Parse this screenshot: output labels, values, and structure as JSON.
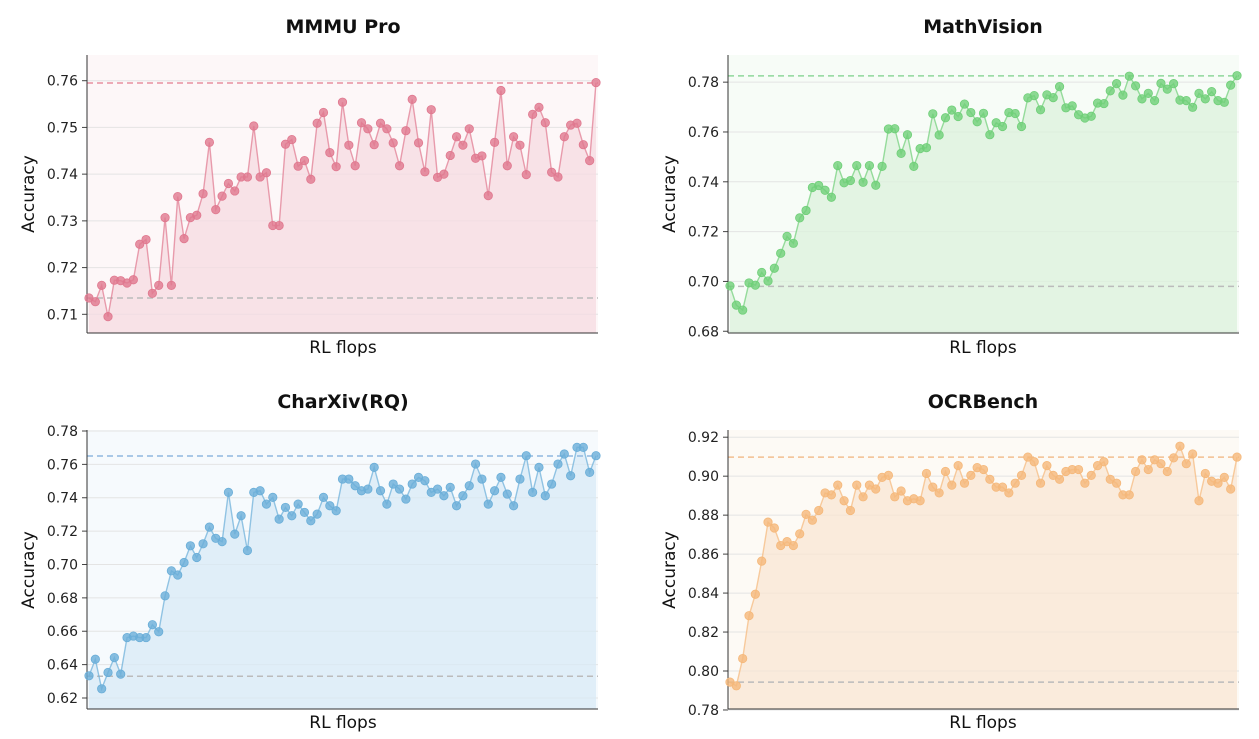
{
  "chart_data": [
    {
      "type": "line",
      "title": "MMMU Pro",
      "xlabel": "RL flops",
      "ylabel": "Accuracy",
      "ylim": [
        0.706,
        0.7655
      ],
      "yticks": [
        0.71,
        0.72,
        0.73,
        0.74,
        0.75,
        0.76
      ],
      "tick_labels": [
        "0.71",
        "0.72",
        "0.73",
        "0.74",
        "0.75",
        "0.76"
      ],
      "color": "#e0788f",
      "fill_color": "#f6dbe1",
      "reference_lines": [
        {
          "value": 0.7595,
          "color": "#e8909f"
        },
        {
          "value": 0.7135,
          "color": "#bbbbbb"
        }
      ],
      "series": [
        {
          "values": [
            0.7135,
            0.7127,
            0.7162,
            0.7095,
            0.7173,
            0.7172,
            0.7167,
            0.7174,
            0.725,
            0.726,
            0.7145,
            0.7162,
            0.7307,
            0.7162,
            0.7352,
            0.7262,
            0.7307,
            0.7312,
            0.7358,
            0.7468,
            0.7324,
            0.7353,
            0.738,
            0.7364,
            0.7394,
            0.7394,
            0.7503,
            0.7394,
            0.7403,
            0.729,
            0.729,
            0.7464,
            0.7474,
            0.7417,
            0.7429,
            0.7389,
            0.7509,
            0.7532,
            0.7446,
            0.7416,
            0.7554,
            0.7462,
            0.7418,
            0.751,
            0.7497,
            0.7463,
            0.7509,
            0.7497,
            0.7467,
            0.7418,
            0.7493,
            0.756,
            0.7467,
            0.7405,
            0.7538,
            0.7393,
            0.74,
            0.744,
            0.748,
            0.7462,
            0.7497,
            0.7434,
            0.7439,
            0.7354,
            0.7468,
            0.7579,
            0.7418,
            0.748,
            0.7462,
            0.7399,
            0.7528,
            0.7543,
            0.751,
            0.7404,
            0.7394,
            0.748,
            0.7505,
            0.7509,
            0.7463,
            0.7429,
            0.7596
          ]
        }
      ]
    },
    {
      "type": "line",
      "title": "MathVision",
      "xlabel": "RL flops",
      "ylabel": "Accuracy",
      "ylim": [
        0.6793,
        0.7909
      ],
      "yticks": [
        0.68,
        0.7,
        0.72,
        0.74,
        0.76,
        0.78
      ],
      "tick_labels": [
        "0.68",
        "0.70",
        "0.72",
        "0.74",
        "0.76",
        "0.78"
      ],
      "color": "#6fcf78",
      "fill_color": "#dcf2dc",
      "reference_lines": [
        {
          "value": 0.7825,
          "color": "#8ed79a"
        },
        {
          "value": 0.698,
          "color": "#bbbbbb"
        }
      ],
      "series": [
        {
          "values": [
            0.6982,
            0.6905,
            0.6885,
            0.6994,
            0.6985,
            0.7036,
            0.7002,
            0.7053,
            0.7113,
            0.7181,
            0.7153,
            0.7255,
            0.7285,
            0.7377,
            0.7385,
            0.7366,
            0.7338,
            0.7465,
            0.7396,
            0.7405,
            0.7465,
            0.7398,
            0.7465,
            0.7386,
            0.7462,
            0.7612,
            0.7613,
            0.7514,
            0.7589,
            0.7462,
            0.7533,
            0.7537,
            0.7673,
            0.7588,
            0.7657,
            0.7688,
            0.7662,
            0.7712,
            0.7678,
            0.7641,
            0.7675,
            0.7589,
            0.7637,
            0.7622,
            0.7678,
            0.7674,
            0.7622,
            0.7737,
            0.7746,
            0.7689,
            0.7749,
            0.7738,
            0.7782,
            0.7697,
            0.7705,
            0.7669,
            0.7656,
            0.7663,
            0.7716,
            0.7714,
            0.7765,
            0.7794,
            0.7748,
            0.7824,
            0.7785,
            0.7733,
            0.7755,
            0.7726,
            0.7795,
            0.7772,
            0.7794,
            0.7728,
            0.7726,
            0.7699,
            0.7755,
            0.7733,
            0.7762,
            0.7726,
            0.7719,
            0.7788,
            0.7826
          ]
        }
      ]
    },
    {
      "type": "line",
      "title": "CharXiv(RQ)",
      "xlabel": "RL flops",
      "ylabel": "Accuracy",
      "ylim": [
        0.6134,
        0.7806
      ],
      "yticks": [
        0.62,
        0.64,
        0.66,
        0.68,
        0.7,
        0.72,
        0.74,
        0.76,
        0.78
      ],
      "tick_labels": [
        "0.62",
        "0.64",
        "0.66",
        "0.68",
        "0.70",
        "0.72",
        "0.74",
        "0.76",
        "0.78"
      ],
      "color": "#6aaed8",
      "fill_color": "#d8e9f6",
      "reference_lines": [
        {
          "value": 0.765,
          "color": "#8fb8e0"
        },
        {
          "value": 0.633,
          "color": "#bbbbbb"
        }
      ],
      "series": [
        {
          "values": [
            0.6333,
            0.6432,
            0.6255,
            0.6353,
            0.6442,
            0.6343,
            0.6562,
            0.6571,
            0.6562,
            0.6562,
            0.6639,
            0.6597,
            0.6812,
            0.6962,
            0.6937,
            0.7012,
            0.7112,
            0.7042,
            0.7124,
            0.7224,
            0.7157,
            0.7137,
            0.7432,
            0.7182,
            0.7292,
            0.7084,
            0.7432,
            0.7442,
            0.7362,
            0.7402,
            0.7272,
            0.7342,
            0.7292,
            0.7362,
            0.7312,
            0.7262,
            0.7302,
            0.7402,
            0.7352,
            0.7322,
            0.7512,
            0.7512,
            0.7472,
            0.7442,
            0.7452,
            0.7582,
            0.7442,
            0.7362,
            0.7482,
            0.7452,
            0.7392,
            0.7482,
            0.7522,
            0.7502,
            0.7432,
            0.7452,
            0.7412,
            0.7462,
            0.7352,
            0.7412,
            0.7472,
            0.7602,
            0.7512,
            0.7362,
            0.7442,
            0.7522,
            0.7422,
            0.7352,
            0.7512,
            0.7652,
            0.7432,
            0.7582,
            0.7412,
            0.7482,
            0.7602,
            0.7662,
            0.7532,
            0.7702,
            0.7702,
            0.7552,
            0.7652
          ]
        }
      ]
    },
    {
      "type": "line",
      "title": "OCRBench",
      "xlabel": "RL flops",
      "ylabel": "Accuracy",
      "ylim": [
        0.7805,
        0.9237
      ],
      "yticks": [
        0.78,
        0.8,
        0.82,
        0.84,
        0.86,
        0.88,
        0.9,
        0.92
      ],
      "tick_labels": [
        "0.78",
        "0.80",
        "0.82",
        "0.84",
        "0.86",
        "0.88",
        "0.90",
        "0.92"
      ],
      "color": "#f5b87a",
      "fill_color": "#f8e6d3",
      "reference_lines": [
        {
          "value": 0.9098,
          "color": "#f2bf90"
        },
        {
          "value": 0.7943,
          "color": "#bbbbbb"
        }
      ],
      "series": [
        {
          "values": [
            0.7943,
            0.7924,
            0.8064,
            0.8284,
            0.8394,
            0.8564,
            0.8764,
            0.8734,
            0.8644,
            0.8664,
            0.8644,
            0.8704,
            0.8804,
            0.8774,
            0.8824,
            0.8914,
            0.8904,
            0.8954,
            0.8874,
            0.8824,
            0.8954,
            0.8894,
            0.8954,
            0.8934,
            0.8994,
            0.9004,
            0.8894,
            0.8924,
            0.8874,
            0.8884,
            0.8874,
            0.9014,
            0.8944,
            0.8914,
            0.9024,
            0.8954,
            0.9054,
            0.8964,
            0.9004,
            0.9044,
            0.9034,
            0.8984,
            0.8944,
            0.8944,
            0.8914,
            0.8964,
            0.9004,
            0.9098,
            0.9074,
            0.8964,
            0.9054,
            0.9004,
            0.8984,
            0.9024,
            0.9034,
            0.9034,
            0.8964,
            0.9004,
            0.9054,
            0.9074,
            0.8984,
            0.8964,
            0.8904,
            0.8904,
            0.9024,
            0.9084,
            0.9034,
            0.9084,
            0.9064,
            0.9024,
            0.9094,
            0.9154,
            0.9064,
            0.9114,
            0.8874,
            0.9014,
            0.8974,
            0.8964,
            0.8994,
            0.8934,
            0.9098
          ]
        }
      ]
    }
  ]
}
